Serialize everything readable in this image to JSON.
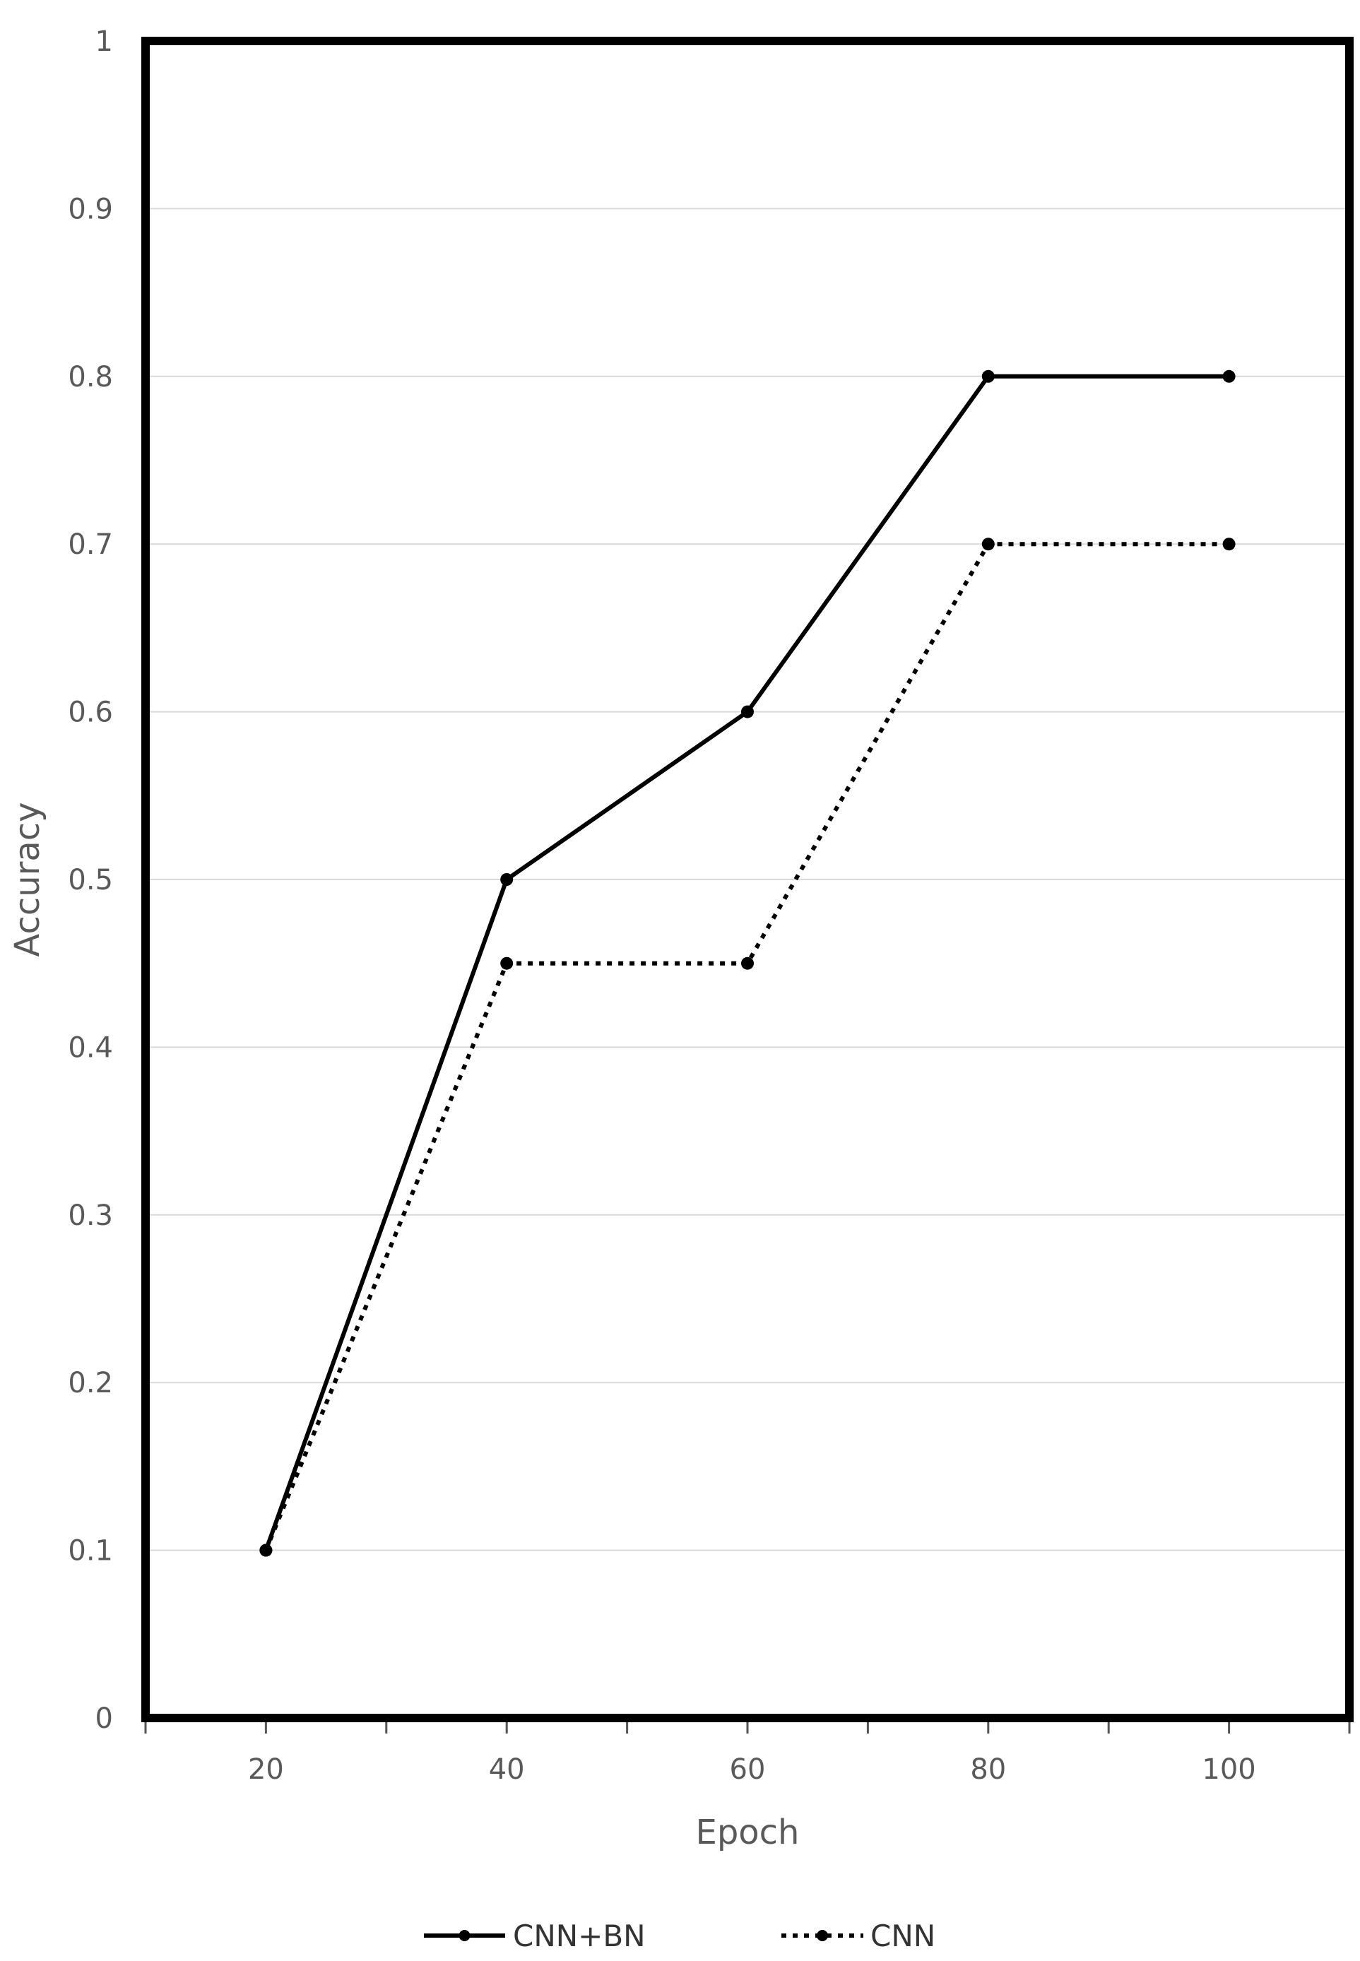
{
  "chart_data": {
    "type": "line",
    "x": [
      20,
      40,
      60,
      80,
      100
    ],
    "series": [
      {
        "name": "CNN+BN",
        "values": [
          0.1,
          0.5,
          0.6,
          0.8,
          0.8
        ],
        "style": "solid",
        "color": "#000000"
      },
      {
        "name": "CNN",
        "values": [
          0.1,
          0.45,
          0.45,
          0.7,
          0.7
        ],
        "style": "dotted",
        "color": "#000000"
      }
    ],
    "xlabel": "Epoch",
    "ylabel": "Accuracy",
    "xlim": [
      10,
      110
    ],
    "ylim": [
      0,
      1
    ],
    "x_ticks": [
      "20",
      "40",
      "60",
      "80",
      "100"
    ],
    "y_ticks": [
      "0",
      "0.1",
      "0.2",
      "0.3",
      "0.4",
      "0.5",
      "0.6",
      "0.7",
      "0.8",
      "0.9",
      "1"
    ],
    "grid": true,
    "legend_position": "bottom"
  }
}
